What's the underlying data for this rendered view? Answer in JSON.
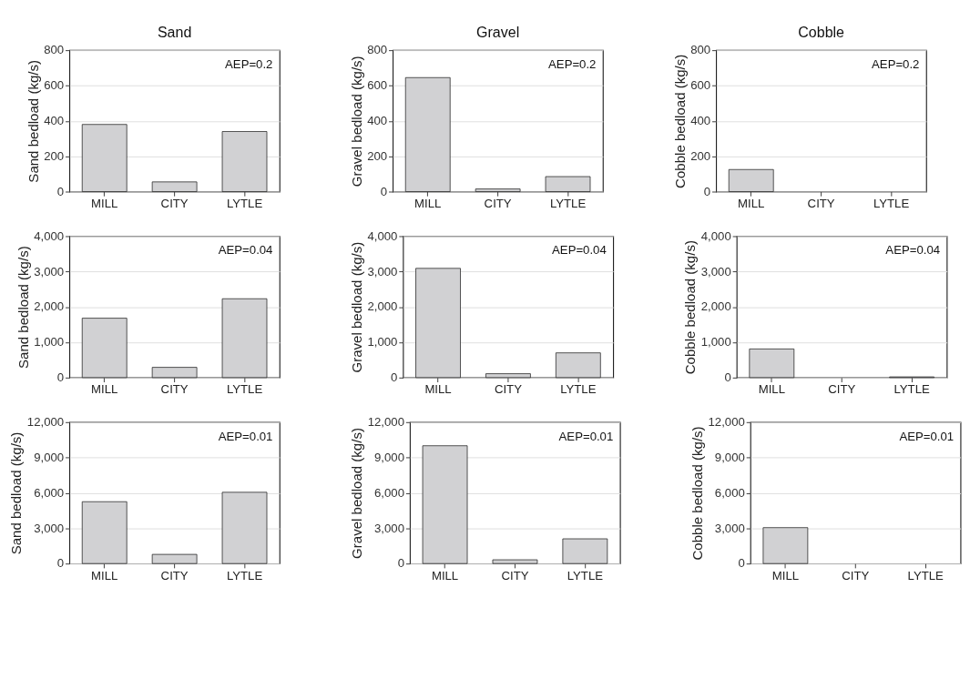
{
  "chart_data": [
    {
      "type": "bar",
      "title": "Sand",
      "ylabel": "Sand bedload (kg/s)",
      "categories": [
        "MILL",
        "CITY",
        "LYTLE"
      ],
      "values": [
        380,
        55,
        340
      ],
      "color": "#d1d1d3",
      "ylim": [
        0,
        800
      ],
      "yticks": [
        0,
        200,
        400,
        600,
        800
      ],
      "grid": "y",
      "annotations": [
        "AEP=0.2"
      ]
    },
    {
      "type": "bar",
      "title": "Gravel",
      "ylabel": "Gravel bedload (kg/s)",
      "categories": [
        "MILL",
        "CITY",
        "LYTLE"
      ],
      "values": [
        645,
        15,
        85
      ],
      "color": "#d1d1d3",
      "ylim": [
        0,
        800
      ],
      "yticks": [
        0,
        200,
        400,
        600,
        800
      ],
      "grid": "y",
      "annotations": [
        "AEP=0.2"
      ]
    },
    {
      "type": "bar",
      "title": "Cobble",
      "ylabel": "Cobble bedload (kg/s)",
      "categories": [
        "MILL",
        "CITY",
        "LYTLE"
      ],
      "values": [
        125,
        null,
        null
      ],
      "color": "#d1d1d3",
      "ylim": [
        0,
        800
      ],
      "yticks": [
        0,
        200,
        400,
        600,
        800
      ],
      "grid": "y",
      "annotations": [
        "AEP=0.2"
      ]
    },
    {
      "type": "bar",
      "ylabel": "Sand bedload (kg/s)",
      "categories": [
        "MILL",
        "CITY",
        "LYTLE"
      ],
      "values": [
        1680,
        290,
        2230
      ],
      "color": "#d1d1d3",
      "ylim": [
        0,
        4000
      ],
      "yticks": [
        0,
        {
          "value": 1000,
          "label": "1,000"
        },
        {
          "value": 2000,
          "label": "2,000"
        },
        {
          "value": 3000,
          "label": "3,000"
        },
        {
          "value": 4000,
          "label": "4,000"
        }
      ],
      "grid": "y",
      "annotations": [
        "AEP=0.04"
      ]
    },
    {
      "type": "bar",
      "ylabel": "Gravel bedload (kg/s)",
      "categories": [
        "MILL",
        "CITY",
        "LYTLE"
      ],
      "values": [
        3090,
        110,
        700
      ],
      "color": "#d1d1d3",
      "ylim": [
        0,
        4000
      ],
      "yticks": [
        0,
        {
          "value": 1000,
          "label": "1,000"
        },
        {
          "value": 2000,
          "label": "2,000"
        },
        {
          "value": 3000,
          "label": "3,000"
        },
        {
          "value": 4000,
          "label": "4,000"
        }
      ],
      "grid": "y",
      "annotations": [
        "AEP=0.04"
      ]
    },
    {
      "type": "bar",
      "ylabel": "Cobble bedload (kg/s)",
      "categories": [
        "MILL",
        "CITY",
        "LYTLE"
      ],
      "values": [
        810,
        null,
        20
      ],
      "color": "#d1d1d3",
      "ylim": [
        0,
        4000
      ],
      "yticks": [
        0,
        {
          "value": 1000,
          "label": "1,000"
        },
        {
          "value": 2000,
          "label": "2,000"
        },
        {
          "value": 3000,
          "label": "3,000"
        },
        {
          "value": 4000,
          "label": "4,000"
        }
      ],
      "grid": "y",
      "annotations": [
        "AEP=0.04"
      ]
    },
    {
      "type": "bar",
      "ylabel": "Sand bedload (kg/s)",
      "categories": [
        "MILL",
        "CITY",
        "LYTLE"
      ],
      "values": [
        5250,
        780,
        6050
      ],
      "color": "#d1d1d3",
      "ylim": [
        0,
        12000
      ],
      "yticks": [
        0,
        {
          "value": 3000,
          "label": "3,000"
        },
        {
          "value": 6000,
          "label": "6,000"
        },
        {
          "value": 9000,
          "label": "9,000"
        },
        {
          "value": 12000,
          "label": "12,000"
        }
      ],
      "grid": "y",
      "annotations": [
        "AEP=0.01"
      ]
    },
    {
      "type": "bar",
      "ylabel": "Gravel bedload (kg/s)",
      "categories": [
        "MILL",
        "CITY",
        "LYTLE"
      ],
      "values": [
        10000,
        320,
        2100
      ],
      "color": "#d1d1d3",
      "ylim": [
        0,
        12000
      ],
      "yticks": [
        0,
        {
          "value": 3000,
          "label": "3,000"
        },
        {
          "value": 6000,
          "label": "6,000"
        },
        {
          "value": 9000,
          "label": "9,000"
        },
        {
          "value": 12000,
          "label": "12,000"
        }
      ],
      "grid": "y",
      "annotations": [
        "AEP=0.01"
      ]
    },
    {
      "type": "bar",
      "ylabel": "Cobble bedload (kg/s)",
      "categories": [
        "MILL",
        "CITY",
        "LYTLE"
      ],
      "values": [
        3050,
        null,
        null
      ],
      "color": "#d1d1d3",
      "ylim": [
        0,
        12000
      ],
      "yticks": [
        0,
        {
          "value": 3000,
          "label": "3,000"
        },
        {
          "value": 6000,
          "label": "6,000"
        },
        {
          "value": 9000,
          "label": "9,000"
        },
        {
          "value": 12000,
          "label": "12,000"
        }
      ],
      "grid": "y",
      "annotations": [
        "AEP=0.01"
      ]
    }
  ]
}
